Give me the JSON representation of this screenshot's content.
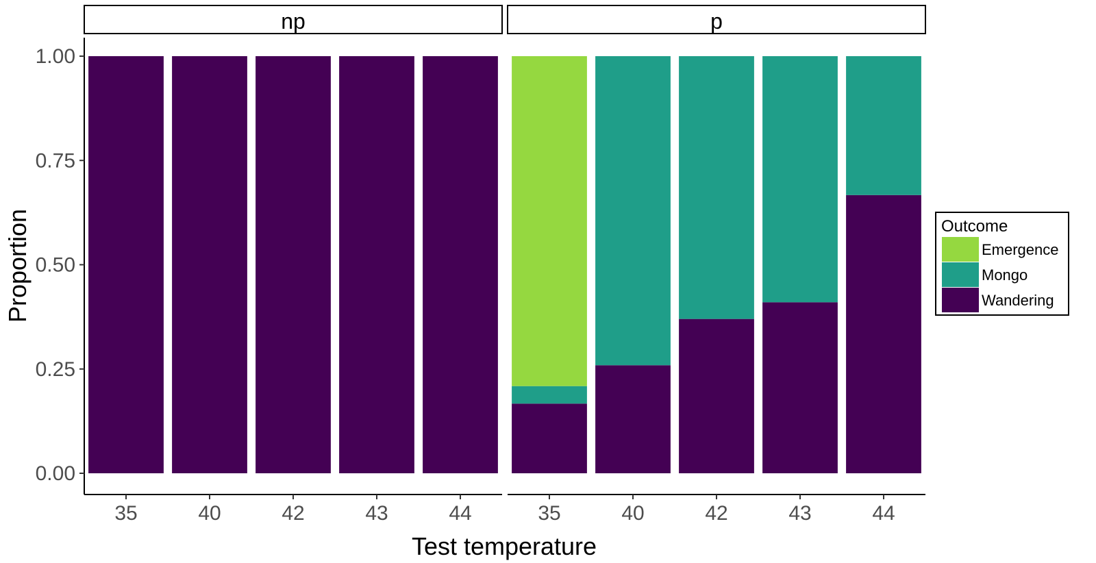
{
  "chart_data": {
    "type": "bar",
    "stacked": true,
    "x_label": "Test temperature",
    "y_label": "Proportion",
    "ylim": [
      0,
      1
    ],
    "y_ticks": [
      "0.00",
      "0.25",
      "0.50",
      "0.75",
      "1.00"
    ],
    "categories": [
      "35",
      "40",
      "42",
      "43",
      "44"
    ],
    "legend": {
      "title": "Outcome",
      "position": "right",
      "entries": [
        {
          "name": "Emergence",
          "color": "#95d840"
        },
        {
          "name": "Mongo",
          "color": "#1f9e89"
        },
        {
          "name": "Wandering",
          "color": "#440154"
        }
      ]
    },
    "facets": [
      {
        "label": "np",
        "series": [
          {
            "name": "Wandering",
            "values": [
              1.0,
              1.0,
              1.0,
              1.0,
              1.0
            ]
          },
          {
            "name": "Mongo",
            "values": [
              0,
              0,
              0,
              0,
              0
            ]
          },
          {
            "name": "Emergence",
            "values": [
              0,
              0,
              0,
              0,
              0
            ]
          }
        ]
      },
      {
        "label": "p",
        "series": [
          {
            "name": "Wandering",
            "values": [
              0.167,
              0.259,
              0.37,
              0.41,
              0.667
            ]
          },
          {
            "name": "Mongo",
            "values": [
              0.042,
              0.741,
              0.63,
              0.59,
              0.333
            ]
          },
          {
            "name": "Emergence",
            "values": [
              0.791,
              0,
              0,
              0,
              0
            ]
          }
        ]
      }
    ],
    "grid": false
  }
}
